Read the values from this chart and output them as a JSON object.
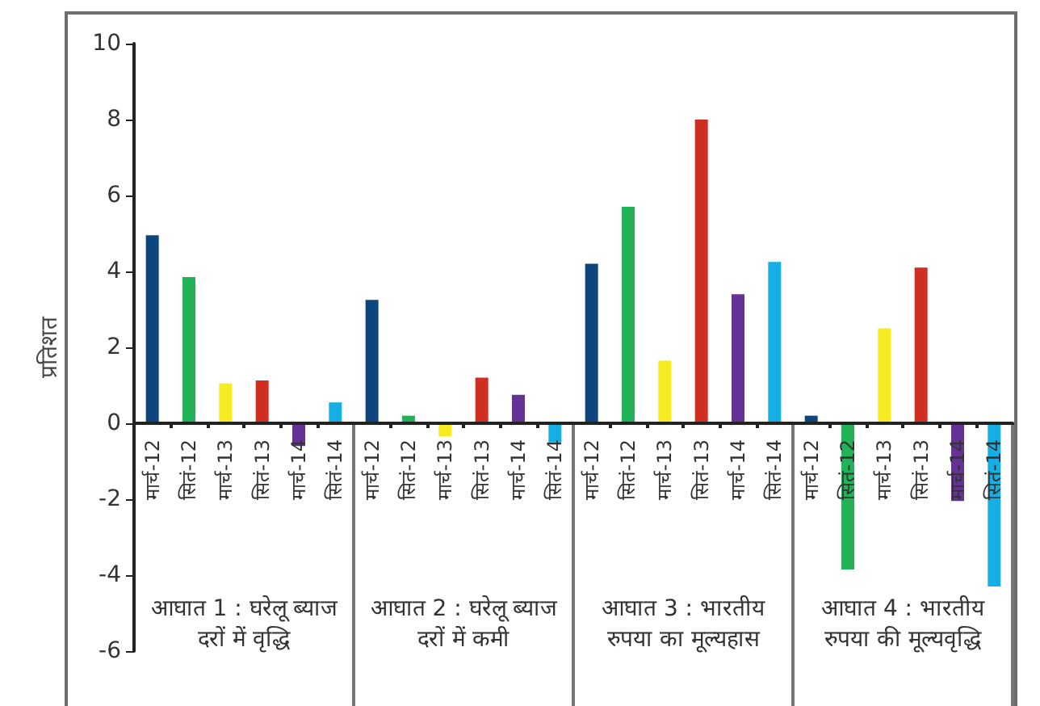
{
  "chart_data": {
    "type": "bar",
    "ylabel": "प्रतिशत",
    "categories": [
      "मार्च-12",
      "सितं-12",
      "मार्च-13",
      "सितं-13",
      "मार्च-14",
      "सितं-14",
      "मार्च-12",
      "सितं-12",
      "मार्च-13",
      "सितं-13",
      "मार्च-14",
      "सितं-14",
      "मार्च-12",
      "सितं-12",
      "मार्च-13",
      "सितं-13",
      "मार्च-14",
      "सितं-14",
      "मार्च-12",
      "सितं-12",
      "मार्च-13",
      "सितं-13",
      "मार्च-14",
      "सितं-14"
    ],
    "values": [
      4.95,
      3.85,
      1.05,
      1.13,
      -0.6,
      0.55,
      3.25,
      0.2,
      -0.35,
      1.2,
      0.75,
      -0.5,
      4.2,
      5.7,
      1.65,
      8.0,
      3.4,
      4.25,
      0.2,
      -3.85,
      2.5,
      4.1,
      -2.05,
      -4.3
    ],
    "colors": [
      "#0d467c",
      "#22b357",
      "#f8ec20",
      "#d12e21",
      "#643393",
      "#16aee3",
      "#0d467c",
      "#22b357",
      "#f8ec20",
      "#d12e21",
      "#643393",
      "#16aee3",
      "#0d467c",
      "#22b357",
      "#f8ec20",
      "#d12e21",
      "#643393",
      "#16aee3",
      "#0d467c",
      "#22b357",
      "#f8ec20",
      "#d12e21",
      "#643393",
      "#16aee3"
    ],
    "ylim": [
      -6,
      10
    ],
    "yticks": [
      -6,
      -4,
      -2,
      0,
      2,
      4,
      6,
      8,
      10
    ],
    "annotations": [
      "आघात 1 : घरेलू ब्याज दरों में वृद्धि",
      "आघात 2 : घरेलू ब्याज दरों में कमी",
      "आघात 3 : भारतीय रुपया का मूल्यहास",
      "आघात 4 : भारतीय रुपया की मूल्यवृद्धि"
    ]
  }
}
